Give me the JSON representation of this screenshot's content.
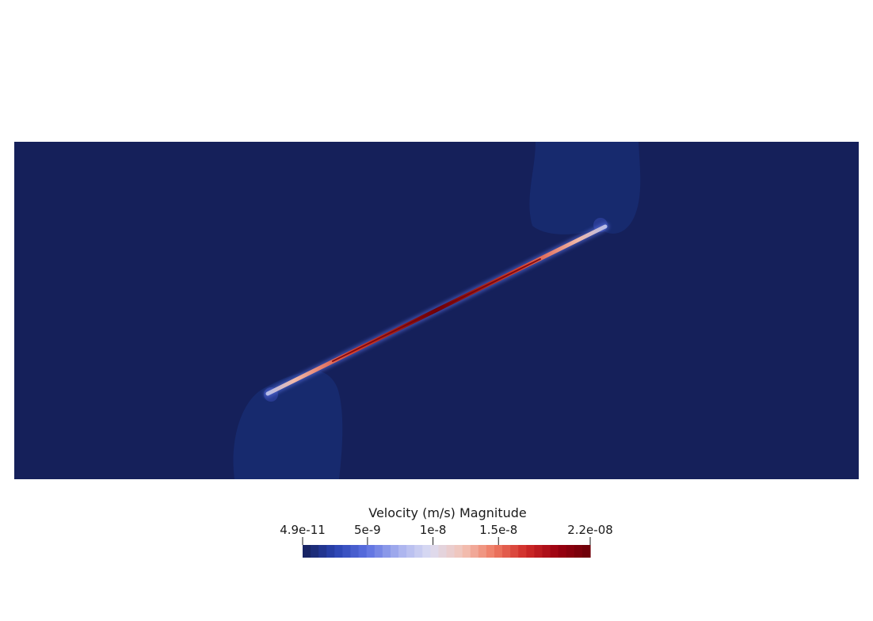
{
  "scene": {
    "background_color": "#ffffff",
    "domain_color": "#15205a",
    "low_plume_color": "#172a6e"
  },
  "colorbar": {
    "title": "Velocity (m/s) Magnitude",
    "tick_labels": [
      "4.9e-11",
      "5e-9",
      "1e-8",
      "1.5e-8",
      "2.2e-08"
    ],
    "tick_values": [
      4.9e-11,
      5e-09,
      1e-08,
      1.5e-08,
      2.2e-08
    ],
    "range": [
      4.9e-11,
      2.2e-08
    ],
    "colormap": "cool-to-warm",
    "colormap_stops": [
      "#15205a",
      "#2942b0",
      "#5a6fe0",
      "#a7b0ee",
      "#dcdcf2",
      "#f2c4b8",
      "#ee7a62",
      "#cf2a28",
      "#9a0010",
      "#6a0008"
    ]
  }
}
